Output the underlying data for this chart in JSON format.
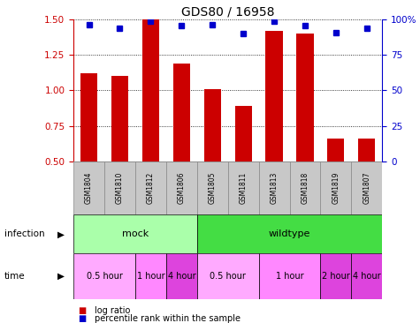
{
  "title": "GDS80 / 16958",
  "samples": [
    "GSM1804",
    "GSM1810",
    "GSM1812",
    "GSM1806",
    "GSM1805",
    "GSM1811",
    "GSM1813",
    "GSM1818",
    "GSM1819",
    "GSM1807"
  ],
  "log_ratio": [
    1.12,
    1.1,
    1.5,
    1.19,
    1.01,
    0.89,
    1.42,
    1.4,
    0.66,
    0.66
  ],
  "percentile": [
    96,
    94,
    98.5,
    95.5,
    96.5,
    90,
    98.5,
    95.5,
    90.5,
    93.5
  ],
  "ylim_left": [
    0.5,
    1.5
  ],
  "ylim_right": [
    0,
    100
  ],
  "yticks_left": [
    0.5,
    0.75,
    1.0,
    1.25,
    1.5
  ],
  "yticks_right": [
    0,
    25,
    50,
    75,
    100
  ],
  "bar_color": "#cc0000",
  "dot_color": "#0000cc",
  "bar_width": 0.55,
  "infection_groups": [
    {
      "label": "mock",
      "start": 0,
      "end": 4,
      "color": "#aaffaa"
    },
    {
      "label": "wildtype",
      "start": 4,
      "end": 10,
      "color": "#44dd44"
    }
  ],
  "time_groups": [
    {
      "label": "0.5 hour",
      "start": 0,
      "end": 2,
      "color": "#ffaaff"
    },
    {
      "label": "1 hour",
      "start": 2,
      "end": 3,
      "color": "#ff88ff"
    },
    {
      "label": "4 hour",
      "start": 3,
      "end": 4,
      "color": "#dd44dd"
    },
    {
      "label": "0.5 hour",
      "start": 4,
      "end": 6,
      "color": "#ffaaff"
    },
    {
      "label": "1 hour",
      "start": 6,
      "end": 8,
      "color": "#ff88ff"
    },
    {
      "label": "2 hour",
      "start": 8,
      "end": 9,
      "color": "#dd44dd"
    },
    {
      "label": "4 hour",
      "start": 9,
      "end": 10,
      "color": "#dd44dd"
    }
  ],
  "background_color": "#ffffff",
  "tick_label_color_left": "#cc0000",
  "tick_label_color_right": "#0000cc",
  "label_row_color": "#c8c8c8",
  "label_row_edge": "#888888"
}
